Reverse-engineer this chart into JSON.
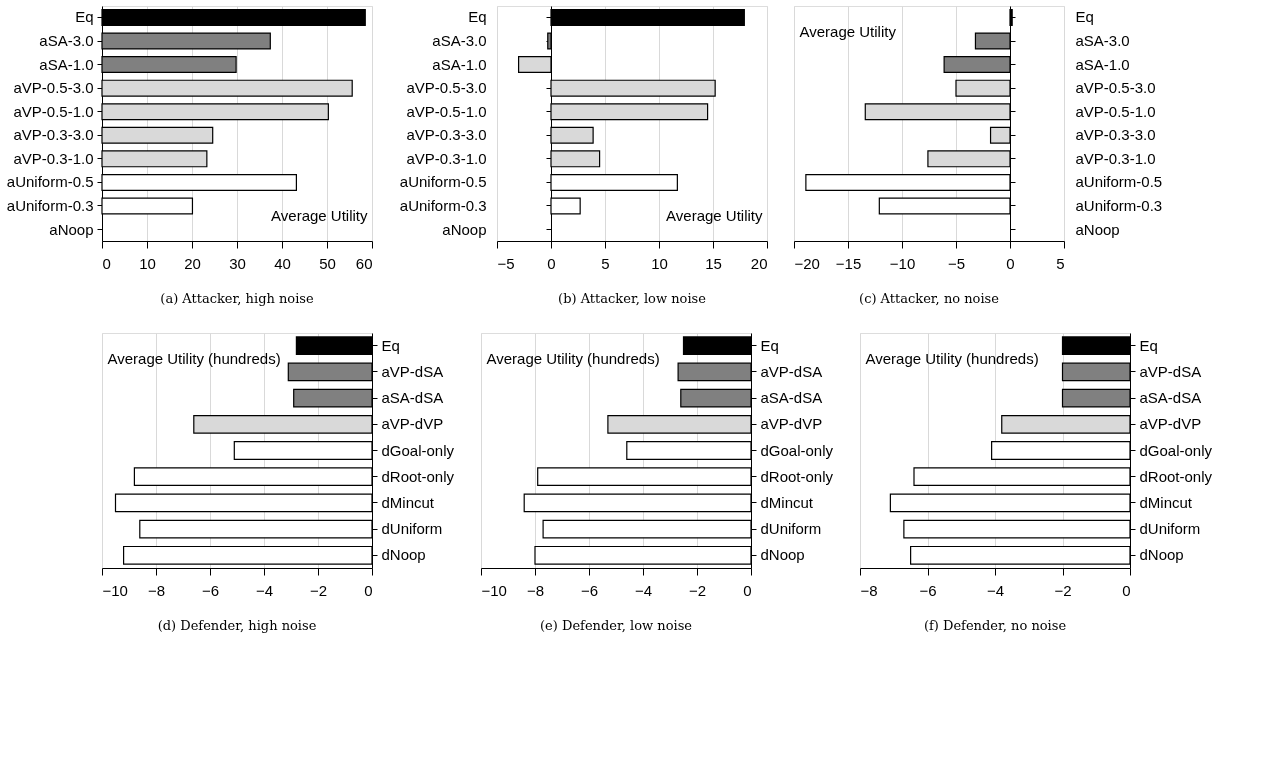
{
  "chart_data": [
    {
      "type": "bar",
      "orientation": "horizontal",
      "title": "(a) Attacker, high noise",
      "xlabel": "Average Utility",
      "categories": [
        "Eq",
        "aSA-3.0",
        "aSA-1.0",
        "aVP-0.5-3.0",
        "aVP-0.5-1.0",
        "aVP-0.3-3.0",
        "aVP-0.3-1.0",
        "aUniform-0.5",
        "aUniform-0.3",
        "aNoop"
      ],
      "values": [
        58.5,
        37.4,
        29.8,
        55.6,
        50.3,
        24.6,
        23.3,
        43.2,
        20.1,
        0
      ],
      "colors": [
        "#000000",
        "#808080",
        "#808080",
        "#d9d9d9",
        "#d9d9d9",
        "#d9d9d9",
        "#d9d9d9",
        "#ffffff",
        "#ffffff",
        "#ffffff"
      ],
      "xlim": [
        0,
        60
      ],
      "xticks": [
        0,
        10,
        20,
        30,
        40,
        50,
        60
      ],
      "grid": "x"
    },
    {
      "type": "bar",
      "orientation": "horizontal",
      "title": "(b) Attacker, low noise",
      "xlabel": "Average Utility",
      "categories": [
        "Eq",
        "aSA-3.0",
        "aSA-1.0",
        "aVP-0.5-3.0",
        "aVP-0.5-1.0",
        "aVP-0.3-3.0",
        "aVP-0.3-1.0",
        "aUniform-0.5",
        "aUniform-0.3",
        "aNoop"
      ],
      "values": [
        17.9,
        -0.3,
        -3.0,
        15.2,
        14.5,
        3.9,
        4.5,
        11.7,
        2.7,
        0
      ],
      "colors": [
        "#000000",
        "#808080",
        "#d9d9d9",
        "#d9d9d9",
        "#d9d9d9",
        "#d9d9d9",
        "#d9d9d9",
        "#ffffff",
        "#ffffff",
        "#ffffff"
      ],
      "xlim": [
        -5,
        20
      ],
      "xticks": [
        -5,
        0,
        5,
        10,
        15,
        20
      ],
      "grid": "x"
    },
    {
      "type": "bar",
      "orientation": "horizontal",
      "title": "(c) Attacker, no noise",
      "xlabel": "Average Utility",
      "categories": [
        "Eq",
        "aSA-3.0",
        "aSA-1.0",
        "aVP-0.5-3.0",
        "aVP-0.5-1.0",
        "aVP-0.3-3.0",
        "aVP-0.3-1.0",
        "aUniform-0.5",
        "aUniform-0.3",
        "aNoop"
      ],
      "values": [
        0.2,
        -3.2,
        -6.1,
        -5.0,
        -13.4,
        -1.8,
        -7.6,
        -18.9,
        -12.1,
        0
      ],
      "colors": [
        "#000000",
        "#808080",
        "#808080",
        "#d9d9d9",
        "#d9d9d9",
        "#d9d9d9",
        "#d9d9d9",
        "#ffffff",
        "#ffffff",
        "#ffffff"
      ],
      "xlim": [
        -20,
        5
      ],
      "xticks": [
        -20,
        -15,
        -10,
        -5,
        0,
        5
      ],
      "grid": "x"
    },
    {
      "type": "bar",
      "orientation": "horizontal",
      "title": "(d) Defender, high noise",
      "xlabel": "Average Utility (hundreds)",
      "categories": [
        "Eq",
        "aVP-dSA",
        "aSA-dSA",
        "aVP-dVP",
        "dGoal-only",
        "dRoot-only",
        "dMincut",
        "dUniform",
        "dNoop"
      ],
      "values": [
        -2.8,
        -3.1,
        -2.9,
        -6.6,
        -5.1,
        -8.8,
        -9.5,
        -8.6,
        -9.2
      ],
      "colors": [
        "#000000",
        "#808080",
        "#808080",
        "#d9d9d9",
        "#ffffff",
        "#ffffff",
        "#ffffff",
        "#ffffff",
        "#ffffff"
      ],
      "xlim": [
        -10,
        0
      ],
      "xticks": [
        -10,
        -8,
        -6,
        -4,
        -2,
        0
      ],
      "grid": "x"
    },
    {
      "type": "bar",
      "orientation": "horizontal",
      "title": "(e) Defender, low noise",
      "xlabel": "Average Utility (hundreds)",
      "categories": [
        "Eq",
        "aVP-dSA",
        "aSA-dSA",
        "aVP-dVP",
        "dGoal-only",
        "dRoot-only",
        "dMincut",
        "dUniform",
        "dNoop"
      ],
      "values": [
        -2.5,
        -2.7,
        -2.6,
        -5.3,
        -4.6,
        -7.9,
        -8.4,
        -7.7,
        -8.0
      ],
      "colors": [
        "#000000",
        "#808080",
        "#808080",
        "#d9d9d9",
        "#ffffff",
        "#ffffff",
        "#ffffff",
        "#ffffff",
        "#ffffff"
      ],
      "xlim": [
        -10,
        0
      ],
      "xticks": [
        -10,
        -8,
        -6,
        -4,
        -2,
        0
      ],
      "grid": "x"
    },
    {
      "type": "bar",
      "orientation": "horizontal",
      "title": "(f) Defender, no noise",
      "xlabel": "Average Utility (hundreds)",
      "categories": [
        "Eq",
        "aVP-dSA",
        "aSA-dSA",
        "aVP-dVP",
        "dGoal-only",
        "dRoot-only",
        "dMincut",
        "dUniform",
        "dNoop"
      ],
      "values": [
        -2.0,
        -2.0,
        -2.0,
        -3.8,
        -4.1,
        -6.4,
        -7.1,
        -6.7,
        -6.5
      ],
      "colors": [
        "#000000",
        "#808080",
        "#808080",
        "#d9d9d9",
        "#ffffff",
        "#ffffff",
        "#ffffff",
        "#ffffff",
        "#ffffff"
      ],
      "xlim": [
        -8,
        0
      ],
      "xticks": [
        -8,
        -6,
        -4,
        -2,
        0
      ],
      "grid": "x"
    }
  ]
}
